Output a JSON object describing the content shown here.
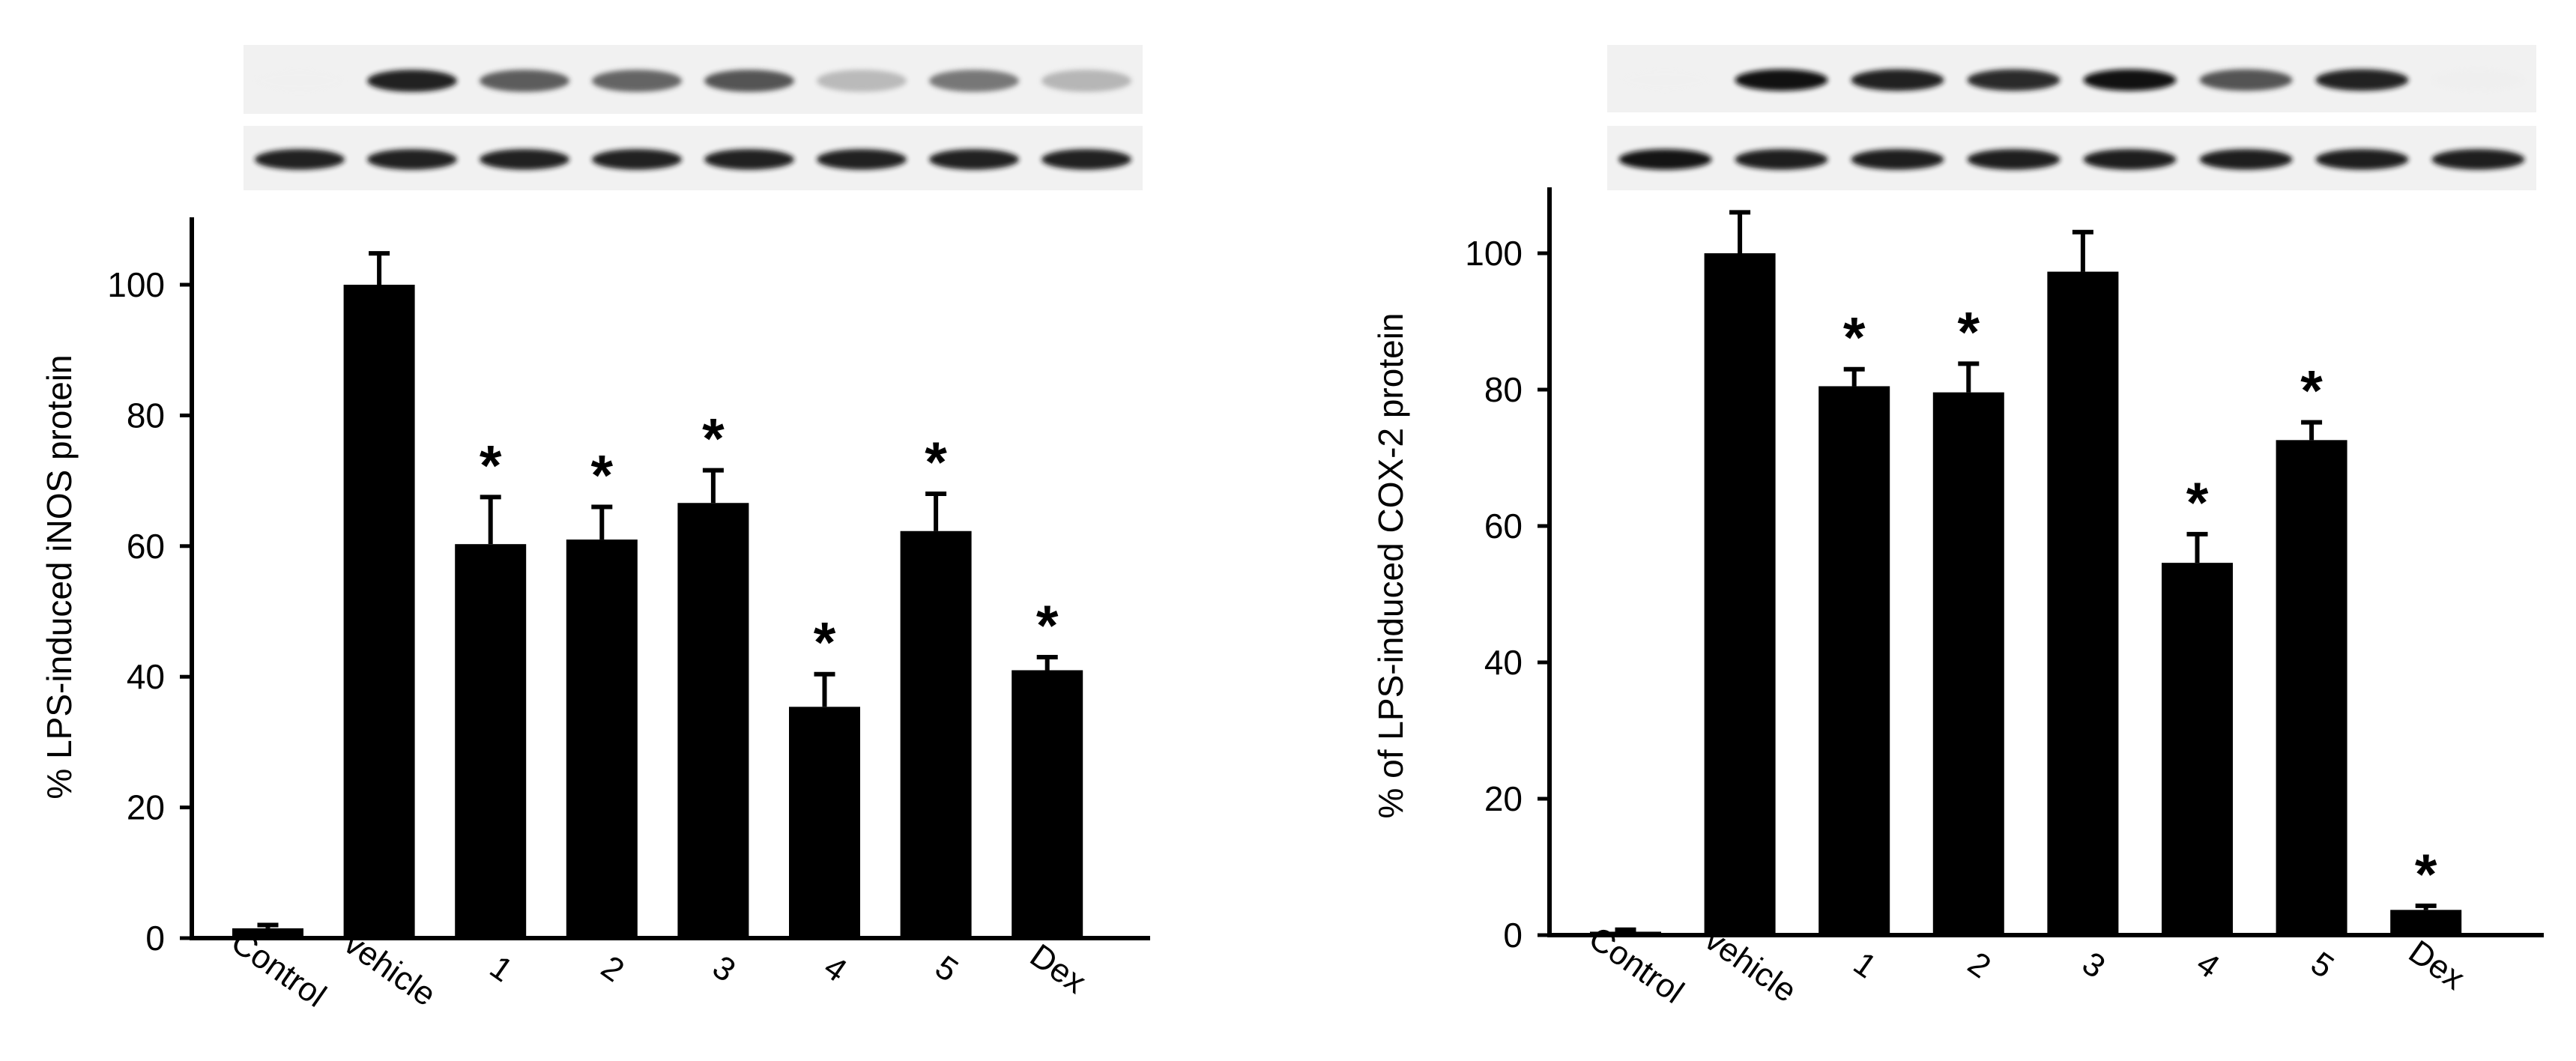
{
  "chart_data": [
    {
      "type": "bar",
      "panel": "left",
      "categories": [
        "Control",
        "vehicle",
        "1",
        "2",
        "3",
        "4",
        "5",
        "Dex"
      ],
      "values": [
        1.5,
        100,
        60.3,
        61,
        66.6,
        35.4,
        62.3,
        41
      ],
      "errors": [
        0.5,
        4.8,
        7.2,
        5,
        5,
        5,
        5.7,
        2
      ],
      "significant": [
        false,
        false,
        true,
        true,
        true,
        true,
        true,
        true
      ],
      "significance_marker": "*",
      "ylabel": "% LPS-induced iNOS protein",
      "xlabel": "",
      "ylim": [
        0,
        110
      ],
      "yticks": [
        0,
        20,
        40,
        60,
        80,
        100
      ],
      "blot_lanes": 8,
      "blot_top_intensity": [
        0.02,
        0.95,
        0.8,
        0.78,
        0.82,
        0.48,
        0.72,
        0.5
      ],
      "blot_bottom_intensity": [
        0.95,
        0.95,
        0.95,
        0.95,
        0.95,
        0.95,
        0.95,
        0.95
      ],
      "bar_color": "#000000",
      "grid": false
    },
    {
      "type": "bar",
      "panel": "right",
      "categories": [
        "Control",
        "vehicle",
        "1",
        "2",
        "3",
        "4",
        "5",
        "Dex"
      ],
      "values": [
        0.5,
        100,
        80.5,
        79.6,
        97.3,
        54.6,
        72.6,
        3.7
      ],
      "errors": [
        0.3,
        6,
        2.5,
        4.2,
        5.8,
        4.2,
        2.6,
        0.6
      ],
      "significant": [
        false,
        false,
        true,
        true,
        false,
        true,
        true,
        true
      ],
      "significance_marker": "*",
      "ylabel": "%  of LPS-induced COX-2 protein",
      "xlabel": "",
      "ylim": [
        0,
        110
      ],
      "yticks": [
        0,
        20,
        40,
        60,
        80,
        100
      ],
      "blot_lanes": 8,
      "blot_top_intensity": [
        0.0,
        0.98,
        0.95,
        0.93,
        0.98,
        0.82,
        0.94,
        0.08
      ],
      "blot_bottom_intensity": [
        0.97,
        0.96,
        0.96,
        0.96,
        0.96,
        0.96,
        0.96,
        0.96
      ],
      "bar_color": "#000000",
      "grid": false
    }
  ]
}
